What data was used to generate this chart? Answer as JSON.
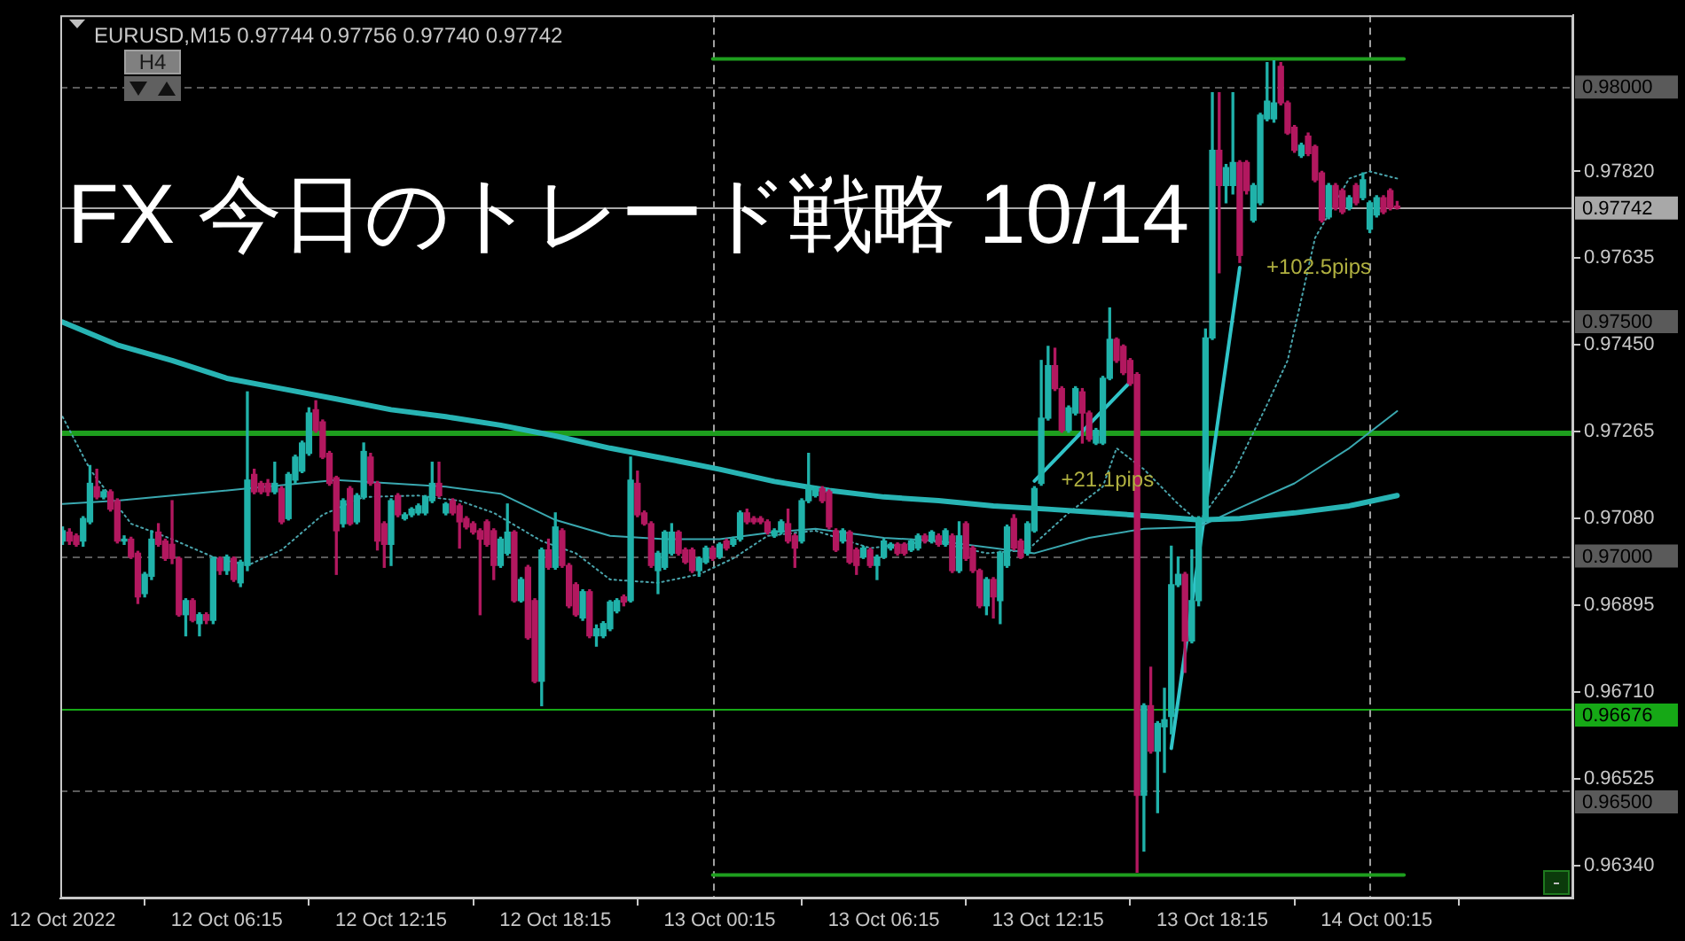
{
  "chart_data": {
    "type": "candlestick",
    "title": "FX 今日のトレード戦略 10/14",
    "subtitle": "EURUSD,M15 0.97744 0.97756 0.97740 0.97742",
    "x": [
      "2022-10-12T00:15",
      "2022-10-12T00:30",
      "2022-10-12T00:45",
      "2022-10-12T01:00",
      "2022-10-12T01:15",
      "2022-10-12T01:30",
      "2022-10-12T01:45",
      "2022-10-12T02:00",
      "2022-10-12T02:15",
      "2022-10-12T02:30",
      "2022-10-12T02:45",
      "2022-10-12T03:00",
      "2022-10-12T03:15",
      "2022-10-12T03:30",
      "2022-10-12T03:45",
      "2022-10-12T04:00",
      "2022-10-12T04:15",
      "2022-10-12T04:30",
      "2022-10-12T04:45",
      "2022-10-12T05:00",
      "2022-10-12T05:15",
      "2022-10-12T05:30",
      "2022-10-12T05:45",
      "2022-10-12T06:00",
      "2022-10-12T06:15",
      "2022-10-12T06:30",
      "2022-10-12T06:45",
      "2022-10-12T07:00",
      "2022-10-12T07:15",
      "2022-10-12T07:30",
      "2022-10-12T07:45",
      "2022-10-12T08:00",
      "2022-10-12T08:15",
      "2022-10-12T08:30",
      "2022-10-12T08:45",
      "2022-10-12T09:00",
      "2022-10-12T09:15",
      "2022-10-12T09:30",
      "2022-10-12T09:45",
      "2022-10-12T10:00",
      "2022-10-12T10:15",
      "2022-10-12T10:30",
      "2022-10-12T10:45",
      "2022-10-12T11:00",
      "2022-10-12T11:15",
      "2022-10-12T11:30",
      "2022-10-12T11:45",
      "2022-10-12T12:00",
      "2022-10-12T12:15",
      "2022-10-12T12:30",
      "2022-10-12T12:45",
      "2022-10-12T13:00",
      "2022-10-12T13:15",
      "2022-10-12T13:30",
      "2022-10-12T13:45",
      "2022-10-12T14:00",
      "2022-10-12T14:15",
      "2022-10-12T14:30",
      "2022-10-12T14:45",
      "2022-10-12T15:00",
      "2022-10-12T15:15",
      "2022-10-12T15:30",
      "2022-10-12T15:45",
      "2022-10-12T16:00",
      "2022-10-12T16:15",
      "2022-10-12T16:30",
      "2022-10-12T16:45",
      "2022-10-12T17:00",
      "2022-10-12T17:15",
      "2022-10-12T17:30",
      "2022-10-12T17:45",
      "2022-10-12T18:00",
      "2022-10-12T18:15",
      "2022-10-12T18:30",
      "2022-10-12T18:45",
      "2022-10-12T19:00",
      "2022-10-12T19:15",
      "2022-10-12T19:30",
      "2022-10-12T19:45",
      "2022-10-12T20:00",
      "2022-10-12T20:15",
      "2022-10-12T20:30",
      "2022-10-12T20:45",
      "2022-10-12T21:00",
      "2022-10-12T21:15",
      "2022-10-12T21:30",
      "2022-10-12T21:45",
      "2022-10-12T22:00",
      "2022-10-12T22:15",
      "2022-10-12T22:30",
      "2022-10-12T22:45",
      "2022-10-12T23:00",
      "2022-10-12T23:15",
      "2022-10-12T23:30",
      "2022-10-12T23:45",
      "2022-10-13T00:00",
      "2022-10-13T00:15",
      "2022-10-13T00:30",
      "2022-10-13T00:45",
      "2022-10-13T01:00",
      "2022-10-13T01:15",
      "2022-10-13T01:30",
      "2022-10-13T01:45",
      "2022-10-13T02:00",
      "2022-10-13T02:15",
      "2022-10-13T02:30",
      "2022-10-13T02:45",
      "2022-10-13T03:00",
      "2022-10-13T03:15",
      "2022-10-13T03:30",
      "2022-10-13T03:45",
      "2022-10-13T04:00",
      "2022-10-13T04:15",
      "2022-10-13T04:30",
      "2022-10-13T04:45",
      "2022-10-13T05:00",
      "2022-10-13T05:15",
      "2022-10-13T05:30",
      "2022-10-13T05:45",
      "2022-10-13T06:00",
      "2022-10-13T06:15",
      "2022-10-13T06:30",
      "2022-10-13T06:45",
      "2022-10-13T07:00",
      "2022-10-13T07:15",
      "2022-10-13T07:30",
      "2022-10-13T07:45",
      "2022-10-13T08:00",
      "2022-10-13T08:15",
      "2022-10-13T08:30",
      "2022-10-13T08:45",
      "2022-10-13T09:00",
      "2022-10-13T09:15",
      "2022-10-13T09:30",
      "2022-10-13T09:45",
      "2022-10-13T10:00",
      "2022-10-13T10:15",
      "2022-10-13T10:30",
      "2022-10-13T10:45",
      "2022-10-13T11:00",
      "2022-10-13T11:15",
      "2022-10-13T11:30",
      "2022-10-13T11:45",
      "2022-10-13T12:00",
      "2022-10-13T12:15",
      "2022-10-13T12:30",
      "2022-10-13T12:45",
      "2022-10-13T13:00",
      "2022-10-13T13:15",
      "2022-10-13T13:30",
      "2022-10-13T13:45",
      "2022-10-13T14:00",
      "2022-10-13T14:15",
      "2022-10-13T14:30",
      "2022-10-13T14:45",
      "2022-10-13T15:00",
      "2022-10-13T15:15",
      "2022-10-13T15:30",
      "2022-10-13T15:45",
      "2022-10-13T16:00",
      "2022-10-13T16:15",
      "2022-10-13T16:30",
      "2022-10-13T16:45",
      "2022-10-13T17:00",
      "2022-10-13T17:15",
      "2022-10-13T17:30",
      "2022-10-13T17:45",
      "2022-10-13T18:00",
      "2022-10-13T18:15",
      "2022-10-13T18:30",
      "2022-10-13T18:45",
      "2022-10-13T19:00",
      "2022-10-13T19:15",
      "2022-10-13T19:30",
      "2022-10-13T19:45",
      "2022-10-13T20:00",
      "2022-10-13T20:15",
      "2022-10-13T20:30",
      "2022-10-13T20:45",
      "2022-10-13T21:00",
      "2022-10-13T21:15",
      "2022-10-13T21:30",
      "2022-10-13T21:45",
      "2022-10-13T22:00",
      "2022-10-13T22:15",
      "2022-10-13T22:30",
      "2022-10-13T22:45",
      "2022-10-13T23:00",
      "2022-10-13T23:15",
      "2022-10-13T23:30",
      "2022-10-13T23:45",
      "2022-10-14T00:00",
      "2022-10-14T00:15",
      "2022-10-14T00:30",
      "2022-10-14T00:45",
      "2022-10-14T01:00"
    ],
    "ohlc": [
      [
        0.97032,
        0.97062,
        0.97025,
        0.97054
      ],
      [
        0.97051,
        0.97058,
        0.97025,
        0.97032
      ],
      [
        0.97043,
        0.97047,
        0.97021,
        0.97025
      ],
      [
        0.97032,
        0.97084,
        0.97021,
        0.9708
      ],
      [
        0.97073,
        0.97193,
        0.97069,
        0.97155
      ],
      [
        0.97148,
        0.97185,
        0.97122,
        0.97126
      ],
      [
        0.97126,
        0.97141,
        0.97122,
        0.97137
      ],
      [
        0.97137,
        0.97141,
        0.97096,
        0.971
      ],
      [
        0.97118,
        0.97122,
        0.97028,
        0.97032
      ],
      [
        0.97032,
        0.97043,
        0.97025,
        0.97036
      ],
      [
        0.97036,
        0.9704,
        0.96995,
        0.96998
      ],
      [
        0.97006,
        0.9701,
        0.96899,
        0.96913
      ],
      [
        0.9692,
        0.96965,
        0.96913,
        0.96961
      ],
      [
        0.96957,
        0.97054,
        0.9695,
        0.97036
      ],
      [
        0.97051,
        0.97069,
        0.97021,
        0.97025
      ],
      [
        0.97032,
        0.97036,
        0.96991,
        0.96995
      ],
      [
        0.97025,
        0.97118,
        0.96984,
        0.96995
      ],
      [
        0.96995,
        0.96998,
        0.96872,
        0.96875
      ],
      [
        0.96875,
        0.96909,
        0.9683,
        0.96905
      ],
      [
        0.96905,
        0.96909,
        0.9686,
        0.96863
      ],
      [
        0.96856,
        0.96879,
        0.9683,
        0.96875
      ],
      [
        0.96875,
        0.96879,
        0.96856,
        0.96863
      ],
      [
        0.96863,
        0.96998,
        0.96856,
        0.96995
      ],
      [
        0.96995,
        0.96998,
        0.96961,
        0.96969
      ],
      [
        0.96969,
        0.97002,
        0.96961,
        0.96998
      ],
      [
        0.96995,
        0.96998,
        0.96946,
        0.9695
      ],
      [
        0.96943,
        0.96991,
        0.96935,
        0.96987
      ],
      [
        0.9698,
        0.9735,
        0.96969,
        0.97162
      ],
      [
        0.97174,
        0.97185,
        0.97133,
        0.97137
      ],
      [
        0.97155,
        0.97159,
        0.97133,
        0.97137
      ],
      [
        0.97155,
        0.97163,
        0.97129,
        0.97137
      ],
      [
        0.97137,
        0.972,
        0.97133,
        0.97155
      ],
      [
        0.97144,
        0.97148,
        0.97069,
        0.97073
      ],
      [
        0.9708,
        0.97178,
        0.97077,
        0.97174
      ],
      [
        0.97162,
        0.97215,
        0.97155,
        0.97211
      ],
      [
        0.97181,
        0.97245,
        0.97178,
        0.97241
      ],
      [
        0.97219,
        0.97316,
        0.97215,
        0.97305
      ],
      [
        0.97312,
        0.97331,
        0.97264,
        0.97268
      ],
      [
        0.97286,
        0.9729,
        0.97208,
        0.97211
      ],
      [
        0.97219,
        0.97223,
        0.97151,
        0.97155
      ],
      [
        0.97167,
        0.9717,
        0.96961,
        0.97054
      ],
      [
        0.97069,
        0.97122,
        0.97062,
        0.97118
      ],
      [
        0.97144,
        0.97148,
        0.97066,
        0.97069
      ],
      [
        0.97073,
        0.97133,
        0.97069,
        0.97129
      ],
      [
        0.97126,
        0.97241,
        0.97122,
        0.97223
      ],
      [
        0.97211,
        0.97219,
        0.97151,
        0.97155
      ],
      [
        0.97155,
        0.97159,
        0.97013,
        0.97032
      ],
      [
        0.97069,
        0.97073,
        0.96976,
        0.97025
      ],
      [
        0.97025,
        0.97122,
        0.9698,
        0.97118
      ],
      [
        0.97129,
        0.97133,
        0.97084,
        0.97088
      ],
      [
        0.9708,
        0.97092,
        0.97077,
        0.97088
      ],
      [
        0.97088,
        0.97103,
        0.97084,
        0.971
      ],
      [
        0.97092,
        0.97111,
        0.97088,
        0.97107
      ],
      [
        0.97092,
        0.97129,
        0.97088,
        0.97126
      ],
      [
        0.97118,
        0.972,
        0.97114,
        0.97155
      ],
      [
        0.97155,
        0.972,
        0.97126,
        0.97129
      ],
      [
        0.97092,
        0.97114,
        0.97088,
        0.97111
      ],
      [
        0.97118,
        0.97122,
        0.97088,
        0.97092
      ],
      [
        0.97107,
        0.97111,
        0.97017,
        0.97073
      ],
      [
        0.9708,
        0.97084,
        0.97058,
        0.97062
      ],
      [
        0.97069,
        0.97073,
        0.97047,
        0.97051
      ],
      [
        0.97054,
        0.97058,
        0.96875,
        0.97036
      ],
      [
        0.97073,
        0.97077,
        0.97021,
        0.97025
      ],
      [
        0.97054,
        0.97058,
        0.9695,
        0.9698
      ],
      [
        0.9698,
        0.9704,
        0.96976,
        0.97036
      ],
      [
        0.97006,
        0.97111,
        0.97002,
        0.97051
      ],
      [
        0.97051,
        0.97054,
        0.96902,
        0.96905
      ],
      [
        0.96905,
        0.96954,
        0.96902,
        0.9695
      ],
      [
        0.96976,
        0.9698,
        0.96823,
        0.96826
      ],
      [
        0.96905,
        0.96909,
        0.9673,
        0.96733
      ],
      [
        0.96733,
        0.97017,
        0.96681,
        0.97013
      ],
      [
        0.97013,
        0.97036,
        0.96972,
        0.96976
      ],
      [
        0.96976,
        0.97092,
        0.96972,
        0.97062
      ],
      [
        0.97054,
        0.97058,
        0.96976,
        0.9698
      ],
      [
        0.9698,
        0.96984,
        0.9689,
        0.96894
      ],
      [
        0.96939,
        0.96943,
        0.96872,
        0.96875
      ],
      [
        0.96868,
        0.96928,
        0.96863,
        0.96924
      ],
      [
        0.96924,
        0.96928,
        0.96826,
        0.9683
      ],
      [
        0.9683,
        0.96853,
        0.96808,
        0.96845
      ],
      [
        0.9683,
        0.9686,
        0.96826,
        0.96856
      ],
      [
        0.96845,
        0.96905,
        0.96841,
        0.96902
      ],
      [
        0.96883,
        0.96909,
        0.96879,
        0.96905
      ],
      [
        0.96913,
        0.96917,
        0.96894,
        0.96902
      ],
      [
        0.96905,
        0.97211,
        0.96902,
        0.97162
      ],
      [
        0.97155,
        0.97181,
        0.97084,
        0.97088
      ],
      [
        0.97092,
        0.97096,
        0.97066,
        0.97069
      ],
      [
        0.97069,
        0.97073,
        0.96976,
        0.9698
      ],
      [
        0.96969,
        0.9701,
        0.9692,
        0.97006
      ],
      [
        0.96976,
        0.97054,
        0.96972,
        0.97051
      ],
      [
        0.97006,
        0.97069,
        0.97002,
        0.97051
      ],
      [
        0.97051,
        0.97054,
        0.97002,
        0.97006
      ],
      [
        0.97013,
        0.97017,
        0.96984,
        0.96987
      ],
      [
        0.97013,
        0.97017,
        0.96965,
        0.96969
      ],
      [
        0.96969,
        0.96998,
        0.96957,
        0.96995
      ],
      [
        0.96987,
        0.97021,
        0.96984,
        0.97017
      ],
      [
        0.97017,
        0.97021,
        0.96991,
        0.96995
      ],
      [
        0.96998,
        0.97028,
        0.96995,
        0.97025
      ],
      [
        0.97032,
        0.97036,
        0.97013,
        0.97017
      ],
      [
        0.97025,
        0.9704,
        0.97021,
        0.97036
      ],
      [
        0.97036,
        0.97096,
        0.97032,
        0.97092
      ],
      [
        0.97092,
        0.971,
        0.97069,
        0.97073
      ],
      [
        0.9708,
        0.97084,
        0.97069,
        0.97073
      ],
      [
        0.9708,
        0.97084,
        0.97069,
        0.97073
      ],
      [
        0.97073,
        0.97077,
        0.97047,
        0.97051
      ],
      [
        0.97043,
        0.97058,
        0.9704,
        0.97054
      ],
      [
        0.97051,
        0.97077,
        0.97047,
        0.97073
      ],
      [
        0.97069,
        0.971,
        0.97028,
        0.97032
      ],
      [
        0.97043,
        0.97047,
        0.96976,
        0.97017
      ],
      [
        0.97032,
        0.97122,
        0.97028,
        0.97118
      ],
      [
        0.97118,
        0.97219,
        0.97114,
        0.97148
      ],
      [
        0.97129,
        0.97148,
        0.97126,
        0.97144
      ],
      [
        0.97144,
        0.97148,
        0.97114,
        0.97118
      ],
      [
        0.97137,
        0.97141,
        0.97058,
        0.97062
      ],
      [
        0.97054,
        0.97058,
        0.9701,
        0.97013
      ],
      [
        0.97032,
        0.97058,
        0.97028,
        0.97054
      ],
      [
        0.97051,
        0.97054,
        0.96984,
        0.96987
      ],
      [
        0.97013,
        0.97017,
        0.96961,
        0.9698
      ],
      [
        0.96998,
        0.97021,
        0.96995,
        0.97017
      ],
      [
        0.97013,
        0.97017,
        0.96976,
        0.9698
      ],
      [
        0.9698,
        0.97002,
        0.9695,
        0.96998
      ],
      [
        0.96998,
        0.97036,
        0.96995,
        0.97032
      ],
      [
        0.97017,
        0.97028,
        0.97013,
        0.97025
      ],
      [
        0.97025,
        0.97028,
        0.97002,
        0.97006
      ],
      [
        0.97025,
        0.97028,
        0.97002,
        0.97006
      ],
      [
        0.97013,
        0.97036,
        0.9701,
        0.97032
      ],
      [
        0.97017,
        0.97047,
        0.97013,
        0.97043
      ],
      [
        0.97043,
        0.97047,
        0.97028,
        0.97032
      ],
      [
        0.97032,
        0.97054,
        0.97028,
        0.97051
      ],
      [
        0.97043,
        0.97047,
        0.97021,
        0.97025
      ],
      [
        0.97025,
        0.97058,
        0.97021,
        0.97054
      ],
      [
        0.97043,
        0.97047,
        0.96965,
        0.96969
      ],
      [
        0.96969,
        0.97073,
        0.96965,
        0.97043
      ],
      [
        0.97069,
        0.97073,
        0.96991,
        0.96995
      ],
      [
        0.97017,
        0.97021,
        0.96965,
        0.96969
      ],
      [
        0.96969,
        0.96972,
        0.9689,
        0.96894
      ],
      [
        0.96894,
        0.96954,
        0.96875,
        0.9695
      ],
      [
        0.9695,
        0.96954,
        0.96868,
        0.96913
      ],
      [
        0.96905,
        0.9701,
        0.96856,
        0.97006
      ],
      [
        0.9698,
        0.97066,
        0.96976,
        0.97062
      ],
      [
        0.9708,
        0.97088,
        0.97013,
        0.97017
      ],
      [
        0.97032,
        0.97036,
        0.96995,
        0.96998
      ],
      [
        0.97006,
        0.97073,
        0.97002,
        0.97069
      ],
      [
        0.97054,
        0.97148,
        0.97051,
        0.97144
      ],
      [
        0.97155,
        0.97417,
        0.97151,
        0.97294
      ],
      [
        0.97294,
        0.97447,
        0.9729,
        0.97406
      ],
      [
        0.97406,
        0.97443,
        0.97353,
        0.97357
      ],
      [
        0.97357,
        0.97361,
        0.97264,
        0.97268
      ],
      [
        0.97268,
        0.9732,
        0.97264,
        0.97316
      ],
      [
        0.97305,
        0.97361,
        0.97301,
        0.97357
      ],
      [
        0.9735,
        0.97357,
        0.97241,
        0.97305
      ],
      [
        0.97305,
        0.97309,
        0.97245,
        0.97249
      ],
      [
        0.97241,
        0.97272,
        0.97238,
        0.97268
      ],
      [
        0.97241,
        0.97383,
        0.97238,
        0.97379
      ],
      [
        0.97379,
        0.97529,
        0.97376,
        0.97462
      ],
      [
        0.97462,
        0.97465,
        0.97413,
        0.97417
      ],
      [
        0.97447,
        0.9745,
        0.97387,
        0.97391
      ],
      [
        0.97417,
        0.97421,
        0.97364,
        0.97368
      ],
      [
        0.97387,
        0.97391,
        0.96326,
        0.9649
      ],
      [
        0.9649,
        0.96685,
        0.96371,
        0.96681
      ],
      [
        0.96681,
        0.96763,
        0.9658,
        0.96584
      ],
      [
        0.96584,
        0.96647,
        0.96453,
        0.96643
      ],
      [
        0.96636,
        0.96718,
        0.96539,
        0.96651
      ],
      [
        0.96658,
        0.97021,
        0.96621,
        0.96939
      ],
      [
        0.96939,
        0.96998,
        0.96935,
        0.96961
      ],
      [
        0.96961,
        0.96965,
        0.96752,
        0.96819
      ],
      [
        0.96819,
        0.97013,
        0.96815,
        0.96905
      ],
      [
        0.96905,
        0.97084,
        0.96894,
        0.9708
      ],
      [
        0.9708,
        0.97484,
        0.97077,
        0.97465
      ],
      [
        0.97465,
        0.97988,
        0.97462,
        0.97865
      ],
      [
        0.97865,
        0.97988,
        0.97604,
        0.9779
      ],
      [
        0.9779,
        0.97835,
        0.97753,
        0.97828
      ],
      [
        0.9779,
        0.97988,
        0.97772,
        0.97839
      ],
      [
        0.97839,
        0.97843,
        0.97626,
        0.97641
      ],
      [
        0.97839,
        0.97843,
        0.97772,
        0.97779
      ],
      [
        0.97716,
        0.97794,
        0.97712,
        0.9779
      ],
      [
        0.97753,
        0.97944,
        0.97749,
        0.9794
      ],
      [
        0.97932,
        0.98052,
        0.97928,
        0.9797
      ],
      [
        0.97932,
        0.98056,
        0.97925,
        0.97966
      ],
      [
        0.98044,
        0.98052,
        0.97962,
        0.97966
      ],
      [
        0.97966,
        0.9797,
        0.97899,
        0.97902
      ],
      [
        0.97914,
        0.97918,
        0.97861,
        0.97865
      ],
      [
        0.97854,
        0.9788,
        0.9785,
        0.97876
      ],
      [
        0.97895,
        0.97902,
        0.97854,
        0.97858
      ],
      [
        0.97873,
        0.97876,
        0.97798,
        0.97802
      ],
      [
        0.97817,
        0.9782,
        0.97712,
        0.97716
      ],
      [
        0.97723,
        0.97794,
        0.97719,
        0.9779
      ],
      [
        0.9779,
        0.97794,
        0.97738,
        0.97742
      ],
      [
        0.97779,
        0.97783,
        0.9773,
        0.97734
      ],
      [
        0.97742,
        0.97768,
        0.97738,
        0.97764
      ],
      [
        0.9779,
        0.97794,
        0.97749,
        0.97753
      ],
      [
        0.97764,
        0.97817,
        0.9776,
        0.97802
      ],
      [
        0.97697,
        0.97757,
        0.9769,
        0.97753
      ],
      [
        0.97727,
        0.97768,
        0.97723,
        0.97764
      ],
      [
        0.97764,
        0.97768,
        0.9773,
        0.97734
      ],
      [
        0.97779,
        0.97783,
        0.97738,
        0.97742
      ],
      [
        0.97744,
        0.97756,
        0.9774,
        0.97742
      ]
    ],
    "colors": [
      "#20b2aa",
      "#b2185f",
      "#b2185f",
      "#20b2aa",
      "#20b2aa",
      "#b2185f",
      "#20b2aa",
      "#b2185f",
      "#b2185f",
      "#20b2aa",
      "#b2185f",
      "#b2185f",
      "#20b2aa",
      "#20b2aa",
      "#b2185f",
      "#b2185f",
      "#b2185f",
      "#b2185f",
      "#20b2aa",
      "#b2185f",
      "#20b2aa",
      "#b2185f",
      "#20b2aa",
      "#b2185f",
      "#20b2aa",
      "#b2185f",
      "#20b2aa",
      "#20b2aa",
      "#b2185f",
      "#b2185f",
      "#b2185f",
      "#20b2aa",
      "#b2185f",
      "#20b2aa",
      "#20b2aa",
      "#20b2aa",
      "#20b2aa",
      "#b2185f",
      "#b2185f",
      "#b2185f",
      "#b2185f",
      "#20b2aa",
      "#b2185f",
      "#20b2aa",
      "#20b2aa",
      "#b2185f",
      "#b2185f",
      "#b2185f",
      "#20b2aa",
      "#b2185f",
      "#20b2aa",
      "#20b2aa",
      "#20b2aa",
      "#20b2aa",
      "#20b2aa",
      "#b2185f",
      "#20b2aa",
      "#b2185f",
      "#b2185f",
      "#b2185f",
      "#b2185f",
      "#b2185f",
      "#b2185f",
      "#b2185f",
      "#20b2aa",
      "#20b2aa",
      "#b2185f",
      "#20b2aa",
      "#b2185f",
      "#b2185f",
      "#20b2aa",
      "#b2185f",
      "#20b2aa",
      "#b2185f",
      "#b2185f",
      "#b2185f",
      "#20b2aa",
      "#b2185f",
      "#20b2aa",
      "#20b2aa",
      "#20b2aa",
      "#20b2aa",
      "#b2185f",
      "#20b2aa",
      "#b2185f",
      "#b2185f",
      "#b2185f",
      "#20b2aa",
      "#20b2aa",
      "#20b2aa",
      "#b2185f",
      "#b2185f",
      "#b2185f",
      "#20b2aa",
      "#20b2aa",
      "#b2185f",
      "#20b2aa",
      "#b2185f",
      "#20b2aa",
      "#20b2aa",
      "#b2185f",
      "#b2185f",
      "#b2185f",
      "#b2185f",
      "#20b2aa",
      "#20b2aa",
      "#b2185f",
      "#b2185f",
      "#20b2aa",
      "#20b2aa",
      "#20b2aa",
      "#b2185f",
      "#b2185f",
      "#b2185f",
      "#20b2aa",
      "#b2185f",
      "#b2185f",
      "#20b2aa",
      "#b2185f",
      "#20b2aa",
      "#20b2aa",
      "#20b2aa",
      "#b2185f",
      "#b2185f",
      "#20b2aa",
      "#20b2aa",
      "#b2185f",
      "#20b2aa",
      "#b2185f",
      "#20b2aa",
      "#b2185f",
      "#20b2aa",
      "#b2185f",
      "#b2185f",
      "#b2185f",
      "#20b2aa",
      "#b2185f",
      "#20b2aa",
      "#20b2aa",
      "#b2185f",
      "#b2185f",
      "#20b2aa",
      "#20b2aa",
      "#20b2aa",
      "#20b2aa",
      "#b2185f",
      "#b2185f",
      "#20b2aa",
      "#20b2aa",
      "#b2185f",
      "#b2185f",
      "#20b2aa",
      "#20b2aa",
      "#20b2aa",
      "#b2185f",
      "#b2185f",
      "#b2185f",
      "#b2185f",
      "#20b2aa",
      "#b2185f",
      "#20b2aa",
      "#20b2aa",
      "#20b2aa",
      "#20b2aa",
      "#b2185f",
      "#20b2aa",
      "#20b2aa",
      "#20b2aa",
      "#20b2aa",
      "#b2185f",
      "#20b2aa",
      "#20b2aa",
      "#b2185f",
      "#b2185f",
      "#20b2aa",
      "#20b2aa",
      "#20b2aa",
      "#20b2aa",
      "#b2185f",
      "#b2185f",
      "#b2185f",
      "#20b2aa",
      "#b2185f",
      "#b2185f",
      "#b2185f",
      "#20b2aa",
      "#b2185f",
      "#b2185f",
      "#20b2aa",
      "#b2185f",
      "#20b2aa",
      "#20b2aa",
      "#20b2aa",
      "#b2185f",
      "#b2185f",
      "#b2185f"
    ],
    "series": [
      {
        "type": "line",
        "color": "#28b4b4",
        "x": [
          "2022-10-12T00:15",
          "2022-10-12T02:15",
          "2022-10-12T04:15",
          "2022-10-12T06:15",
          "2022-10-12T08:15",
          "2022-10-12T10:15",
          "2022-10-12T12:15",
          "2022-10-12T14:15",
          "2022-10-12T16:15",
          "2022-10-12T18:15",
          "2022-10-12T20:15",
          "2022-10-12T22:15",
          "2022-10-13T00:15",
          "2022-10-13T02:15",
          "2022-10-13T04:15",
          "2022-10-13T06:15",
          "2022-10-13T08:15",
          "2022-10-13T10:15",
          "2022-10-13T12:15",
          "2022-10-13T14:15",
          "2022-10-13T16:15",
          "2022-10-13T17:45",
          "2022-10-13T19:15",
          "2022-10-13T21:15",
          "2022-10-13T23:15",
          "2022-10-14T01:00"
        ],
        "values": [
          0.97499,
          0.9745,
          0.97417,
          0.97379,
          0.97357,
          0.97335,
          0.97312,
          0.97297,
          0.97279,
          0.97256,
          0.9723,
          0.97208,
          0.97185,
          0.97159,
          0.9714,
          0.97126,
          0.97118,
          0.97107,
          0.971,
          0.97092,
          0.97084,
          0.97077,
          0.9708,
          0.97092,
          0.97107,
          0.97129
        ]
      },
      {
        "type": "line",
        "color": "#3aa8b0",
        "x": [
          "2022-10-12T00:15",
          "2022-10-12T02:15",
          "2022-10-12T04:15",
          "2022-10-12T07:00",
          "2022-10-12T10:15",
          "2022-10-12T12:15",
          "2022-10-12T14:15",
          "2022-10-12T16:15",
          "2022-10-12T18:15",
          "2022-10-12T20:15",
          "2022-10-12T22:15",
          "2022-10-13T00:15",
          "2022-10-13T02:15",
          "2022-10-13T03:45",
          "2022-10-13T06:15",
          "2022-10-13T08:15",
          "2022-10-13T10:15",
          "2022-10-13T11:45",
          "2022-10-13T13:45",
          "2022-10-13T15:45",
          "2022-10-13T17:45",
          "2022-10-13T19:15",
          "2022-10-13T21:15",
          "2022-10-13T23:15",
          "2022-10-14T01:00"
        ],
        "values": [
          0.97111,
          0.97118,
          0.97129,
          0.97144,
          0.97162,
          0.97155,
          0.97148,
          0.97133,
          0.97077,
          0.97043,
          0.97036,
          0.97036,
          0.97051,
          0.97058,
          0.97039,
          0.97032,
          0.97017,
          0.97006,
          0.97039,
          0.97058,
          0.97062,
          0.97103,
          0.97155,
          0.9723,
          0.97309
        ]
      },
      {
        "type": "line",
        "color": "#4aa4ac",
        "line_style": "dotted",
        "x": [
          "2022-10-12T00:15",
          "2022-10-12T01:15",
          "2022-10-12T02:45",
          "2022-10-12T04:15",
          "2022-10-12T05:45",
          "2022-10-12T07:00",
          "2022-10-12T08:15",
          "2022-10-12T09:45",
          "2022-10-12T11:15",
          "2022-10-12T13:15",
          "2022-10-12T14:45",
          "2022-10-12T16:00",
          "2022-10-12T17:45",
          "2022-10-12T19:00",
          "2022-10-12T20:15",
          "2022-10-12T22:00",
          "2022-10-12T23:30",
          "2022-10-13T00:45",
          "2022-10-13T02:00",
          "2022-10-13T03:45",
          "2022-10-13T05:45",
          "2022-10-13T08:00",
          "2022-10-13T10:00",
          "2022-10-13T11:30",
          "2022-10-13T13:00",
          "2022-10-13T14:15",
          "2022-10-13T14:45",
          "2022-10-13T15:45",
          "2022-10-13T17:00",
          "2022-10-13T17:45",
          "2022-10-13T19:00",
          "2022-10-13T20:15",
          "2022-10-13T21:00",
          "2022-10-13T22:00",
          "2022-10-13T23:15",
          "2022-10-14T00:00",
          "2022-10-14T01:00"
        ],
        "values": [
          0.97297,
          0.97185,
          0.97069,
          0.97036,
          0.96998,
          0.9698,
          0.97013,
          0.97088,
          0.97126,
          0.97129,
          0.97118,
          0.97092,
          0.97032,
          0.97006,
          0.9695,
          0.96943,
          0.96961,
          0.96995,
          0.97043,
          0.97054,
          0.97017,
          0.97032,
          0.97006,
          0.97013,
          0.97092,
          0.97148,
          0.9723,
          0.97185,
          0.97111,
          0.97073,
          0.97174,
          0.97323,
          0.97417,
          0.97678,
          0.97805,
          0.9782,
          0.97805
        ]
      },
      {
        "type": "line",
        "color": "#30c4c8",
        "x": [
          "2022-10-13T11:45",
          "2022-10-13T15:15"
        ],
        "values": [
          0.9716,
          0.97371
        ]
      },
      {
        "type": "line",
        "color": "#30c4c8",
        "x": [
          "2022-10-13T16:45",
          "2022-10-13T19:15"
        ],
        "values": [
          0.9659,
          0.97615
        ]
      },
      {
        "type": "line",
        "color": "#1e9e1e",
        "x": [
          "2022-10-13T00:00",
          "2022-10-14T01:15"
        ],
        "values": [
          0.9806,
          0.9806
        ]
      },
      {
        "type": "line",
        "color": "#1e9e1e",
        "x": [
          "2022-10-13T00:00",
          "2022-10-14T01:15"
        ],
        "values": [
          0.9632,
          0.9632
        ]
      }
    ],
    "xlim": [
      "2022-10-12T00:10",
      "2022-10-14T07:26"
    ],
    "xticks": [
      {
        "value": "2022-10-12T00:15",
        "label": "12 Oct 2022"
      },
      {
        "value": "2022-10-12T06:15",
        "label": "12 Oct 06:15"
      },
      {
        "value": "2022-10-12T12:15",
        "label": "12 Oct 12:15"
      },
      {
        "value": "2022-10-12T18:15",
        "label": "12 Oct 18:15"
      },
      {
        "value": "2022-10-13T00:15",
        "label": "13 Oct 00:15"
      },
      {
        "value": "2022-10-13T06:15",
        "label": "13 Oct 06:15"
      },
      {
        "value": "2022-10-13T12:15",
        "label": "13 Oct 12:15"
      },
      {
        "value": "2022-10-13T18:15",
        "label": "13 Oct 18:15"
      },
      {
        "value": "2022-10-14T00:15",
        "label": "14 Oct 00:15"
      }
    ],
    "ylim": [
      0.9627,
      0.98153
    ],
    "yticks": [
      {
        "value": 0.9634,
        "label": "0.96340"
      },
      {
        "value": 0.96525,
        "label": "0.96525"
      },
      {
        "value": 0.9671,
        "label": "0.96710"
      },
      {
        "value": 0.96895,
        "label": "0.96895"
      },
      {
        "value": 0.9708,
        "label": "0.97080"
      },
      {
        "value": 0.97265,
        "label": "0.97265"
      },
      {
        "value": 0.9745,
        "label": "0.97450"
      },
      {
        "value": 0.97635,
        "label": "0.97635"
      },
      {
        "value": 0.9782,
        "label": "0.97820"
      }
    ],
    "ref_lines": [
      {
        "axis": "y",
        "value": 0.98,
        "label": "0.98000",
        "color": "#5a5a5a",
        "line_style": "dashed"
      },
      {
        "axis": "y",
        "value": 0.97742,
        "label": "0.97742",
        "color": "#a8a8a8",
        "line_style": "solid"
      },
      {
        "axis": "y",
        "value": 0.975,
        "label": "0.97500",
        "color": "#5a5a5a",
        "line_style": "dashed"
      },
      {
        "axis": "y",
        "value": 0.97265,
        "color": "#1e9e1e",
        "line_style": "solid"
      },
      {
        "axis": "y",
        "value": 0.97,
        "label": "0.97000",
        "color": "#5a5a5a",
        "line_style": "dashed"
      },
      {
        "axis": "y",
        "value": 0.96676,
        "label": "0.96676",
        "color": "#16a816",
        "line_style": "solid"
      },
      {
        "axis": "y",
        "value": 0.965,
        "label": "0.96500",
        "color": "#5a5a5a",
        "line_style": "dashed"
      },
      {
        "axis": "x",
        "value": "2022-10-13T00:00",
        "color": "#a0a0a0",
        "line_style": "dashed"
      },
      {
        "axis": "x",
        "value": "2022-10-14T00:00",
        "color": "#a0a0a0",
        "line_style": "dashed"
      }
    ],
    "annotations": [
      {
        "text": "+21.1pips",
        "x": "2022-10-13T11:45",
        "y": 0.9716
      },
      {
        "text": "+102.5pips",
        "x": "2022-10-13T19:15",
        "y": 0.97615
      },
      "H4"
    ],
    "grid": false,
    "legend": false
  }
}
